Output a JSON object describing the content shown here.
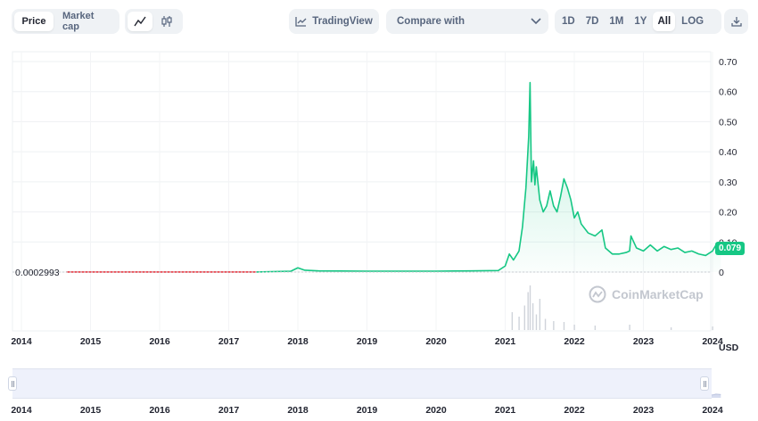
{
  "toolbar": {
    "type_options": [
      "Price",
      "Market cap"
    ],
    "type_active": "Price",
    "chart_type_icons": [
      "line-chart-icon",
      "candlestick-icon"
    ],
    "tradingview_label": "TradingView",
    "compare_label": "Compare with",
    "range_options": [
      "1D",
      "7D",
      "1M",
      "1Y",
      "All",
      "LOG"
    ],
    "range_active": "All",
    "download_icon": "download-icon"
  },
  "chart_data": {
    "type": "area",
    "ylabel": "USD",
    "y_ticks": [
      "0.70",
      "0.60",
      "0.50",
      "0.40",
      "0.30",
      "0.20",
      "0.10",
      "0"
    ],
    "ylim": [
      0,
      0.7
    ],
    "x_ticks": [
      "2014",
      "2015",
      "2016",
      "2017",
      "2018",
      "2019",
      "2020",
      "2021",
      "2022",
      "2023",
      "2024"
    ],
    "base_price_label": "0.0002993",
    "current_price_label": "0.079",
    "series": [
      {
        "x": [
          2014.65,
          2017.4,
          2017.9,
          2018.0,
          2018.1,
          2018.3,
          2019.0,
          2019.5,
          2020.0,
          2020.5,
          2020.9,
          2021.0,
          2021.06,
          2021.12,
          2021.2,
          2021.25,
          2021.3,
          2021.34,
          2021.36,
          2021.38,
          2021.41,
          2021.43,
          2021.45,
          2021.5,
          2021.55,
          2021.6,
          2021.65,
          2021.7,
          2021.75,
          2021.8,
          2021.85,
          2021.9,
          2021.95,
          2022.0,
          2022.05,
          2022.1,
          2022.2,
          2022.3,
          2022.4,
          2022.45,
          2022.55,
          2022.65,
          2022.75,
          2022.8,
          2022.82,
          2022.9,
          2023.0,
          2023.1,
          2023.2,
          2023.3,
          2023.4,
          2023.5,
          2023.6,
          2023.7,
          2023.8,
          2023.9,
          2024.0,
          2024.05,
          2024.12
        ],
        "y": [
          0.0003,
          0.0003,
          0.003,
          0.014,
          0.006,
          0.004,
          0.003,
          0.003,
          0.003,
          0.004,
          0.005,
          0.02,
          0.06,
          0.04,
          0.07,
          0.15,
          0.28,
          0.45,
          0.63,
          0.3,
          0.37,
          0.29,
          0.35,
          0.24,
          0.2,
          0.22,
          0.27,
          0.22,
          0.2,
          0.25,
          0.31,
          0.28,
          0.24,
          0.18,
          0.2,
          0.16,
          0.13,
          0.12,
          0.14,
          0.08,
          0.06,
          0.06,
          0.065,
          0.07,
          0.12,
          0.08,
          0.07,
          0.09,
          0.07,
          0.085,
          0.075,
          0.08,
          0.065,
          0.07,
          0.06,
          0.055,
          0.07,
          0.09,
          0.079
        ]
      }
    ],
    "volume": [
      {
        "x": 2021.1,
        "v": 0.4
      },
      {
        "x": 2021.2,
        "v": 0.3
      },
      {
        "x": 2021.28,
        "v": 0.55
      },
      {
        "x": 2021.33,
        "v": 0.85
      },
      {
        "x": 2021.36,
        "v": 1.0
      },
      {
        "x": 2021.4,
        "v": 0.6
      },
      {
        "x": 2021.45,
        "v": 0.35
      },
      {
        "x": 2021.5,
        "v": 0.7
      },
      {
        "x": 2021.58,
        "v": 0.25
      },
      {
        "x": 2021.7,
        "v": 0.2
      },
      {
        "x": 2021.85,
        "v": 0.18
      },
      {
        "x": 2022.0,
        "v": 0.12
      },
      {
        "x": 2022.3,
        "v": 0.1
      },
      {
        "x": 2022.8,
        "v": 0.12
      },
      {
        "x": 2023.4,
        "v": 0.06
      },
      {
        "x": 2024.0,
        "v": 0.08
      }
    ],
    "colors": {
      "up": "#16c784",
      "down": "#ea3943",
      "area_top": "#16c784"
    }
  },
  "watermark": {
    "text": "CoinMarketCap"
  },
  "navigator": {
    "x_ticks": [
      "2014",
      "2015",
      "2016",
      "2017",
      "2018",
      "2019",
      "2020",
      "2021",
      "2022",
      "2023",
      "2024"
    ]
  }
}
